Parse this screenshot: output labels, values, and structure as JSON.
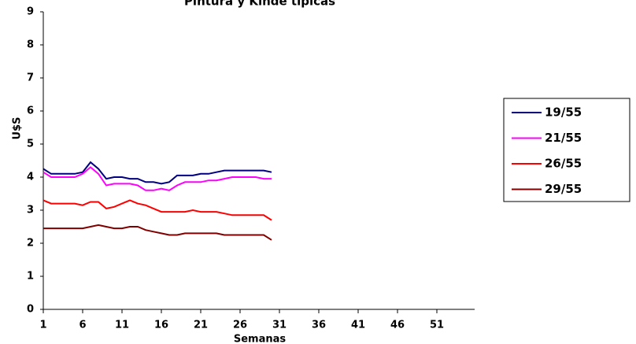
{
  "chart_data": {
    "type": "line",
    "title": "Pintura y Kinde típicas",
    "x_label": "Semanas",
    "y_label": "U$S",
    "x": [
      1,
      2,
      3,
      4,
      5,
      6,
      7,
      8,
      9,
      10,
      11,
      12,
      13,
      14,
      15,
      16,
      17,
      18,
      19,
      20,
      21,
      22,
      23,
      24,
      25,
      26,
      27,
      28,
      29,
      30
    ],
    "series": [
      {
        "name": "19/55",
        "color": "#000080",
        "values": [
          4.25,
          4.1,
          4.1,
          4.1,
          4.1,
          4.15,
          4.45,
          4.25,
          3.95,
          4.0,
          4.0,
          3.95,
          3.95,
          3.85,
          3.85,
          3.8,
          3.85,
          4.05,
          4.05,
          4.05,
          4.1,
          4.1,
          4.15,
          4.2,
          4.2,
          4.2,
          4.2,
          4.2,
          4.2,
          4.15
        ]
      },
      {
        "name": "21/55",
        "color": "#ff00ff",
        "values": [
          4.15,
          4.0,
          4.0,
          4.0,
          4.0,
          4.1,
          4.3,
          4.1,
          3.75,
          3.8,
          3.8,
          3.8,
          3.75,
          3.6,
          3.6,
          3.65,
          3.6,
          3.75,
          3.85,
          3.85,
          3.85,
          3.9,
          3.9,
          3.95,
          4.0,
          4.0,
          4.0,
          4.0,
          3.95,
          3.95
        ]
      },
      {
        "name": "26/55",
        "color": "#ff0000",
        "values": [
          3.3,
          3.2,
          3.2,
          3.2,
          3.2,
          3.15,
          3.25,
          3.25,
          3.05,
          3.1,
          3.2,
          3.3,
          3.2,
          3.15,
          3.05,
          2.95,
          2.95,
          2.95,
          2.95,
          3.0,
          2.95,
          2.95,
          2.95,
          2.9,
          2.85,
          2.85,
          2.85,
          2.85,
          2.85,
          2.7
        ]
      },
      {
        "name": "29/55",
        "color": "#800000",
        "values": [
          2.45,
          2.45,
          2.45,
          2.45,
          2.45,
          2.45,
          2.5,
          2.55,
          2.5,
          2.45,
          2.45,
          2.5,
          2.5,
          2.4,
          2.35,
          2.3,
          2.25,
          2.25,
          2.3,
          2.3,
          2.3,
          2.3,
          2.3,
          2.25,
          2.25,
          2.25,
          2.25,
          2.25,
          2.25,
          2.1
        ]
      }
    ],
    "xlim": [
      1,
      55.8
    ],
    "xticks": [
      1,
      6,
      11,
      16,
      21,
      26,
      31,
      36,
      41,
      46,
      51
    ],
    "ylim": [
      0,
      9
    ],
    "yticks": [
      0,
      1,
      2,
      3,
      4,
      5,
      6,
      7,
      8,
      9
    ],
    "legend": "right"
  }
}
